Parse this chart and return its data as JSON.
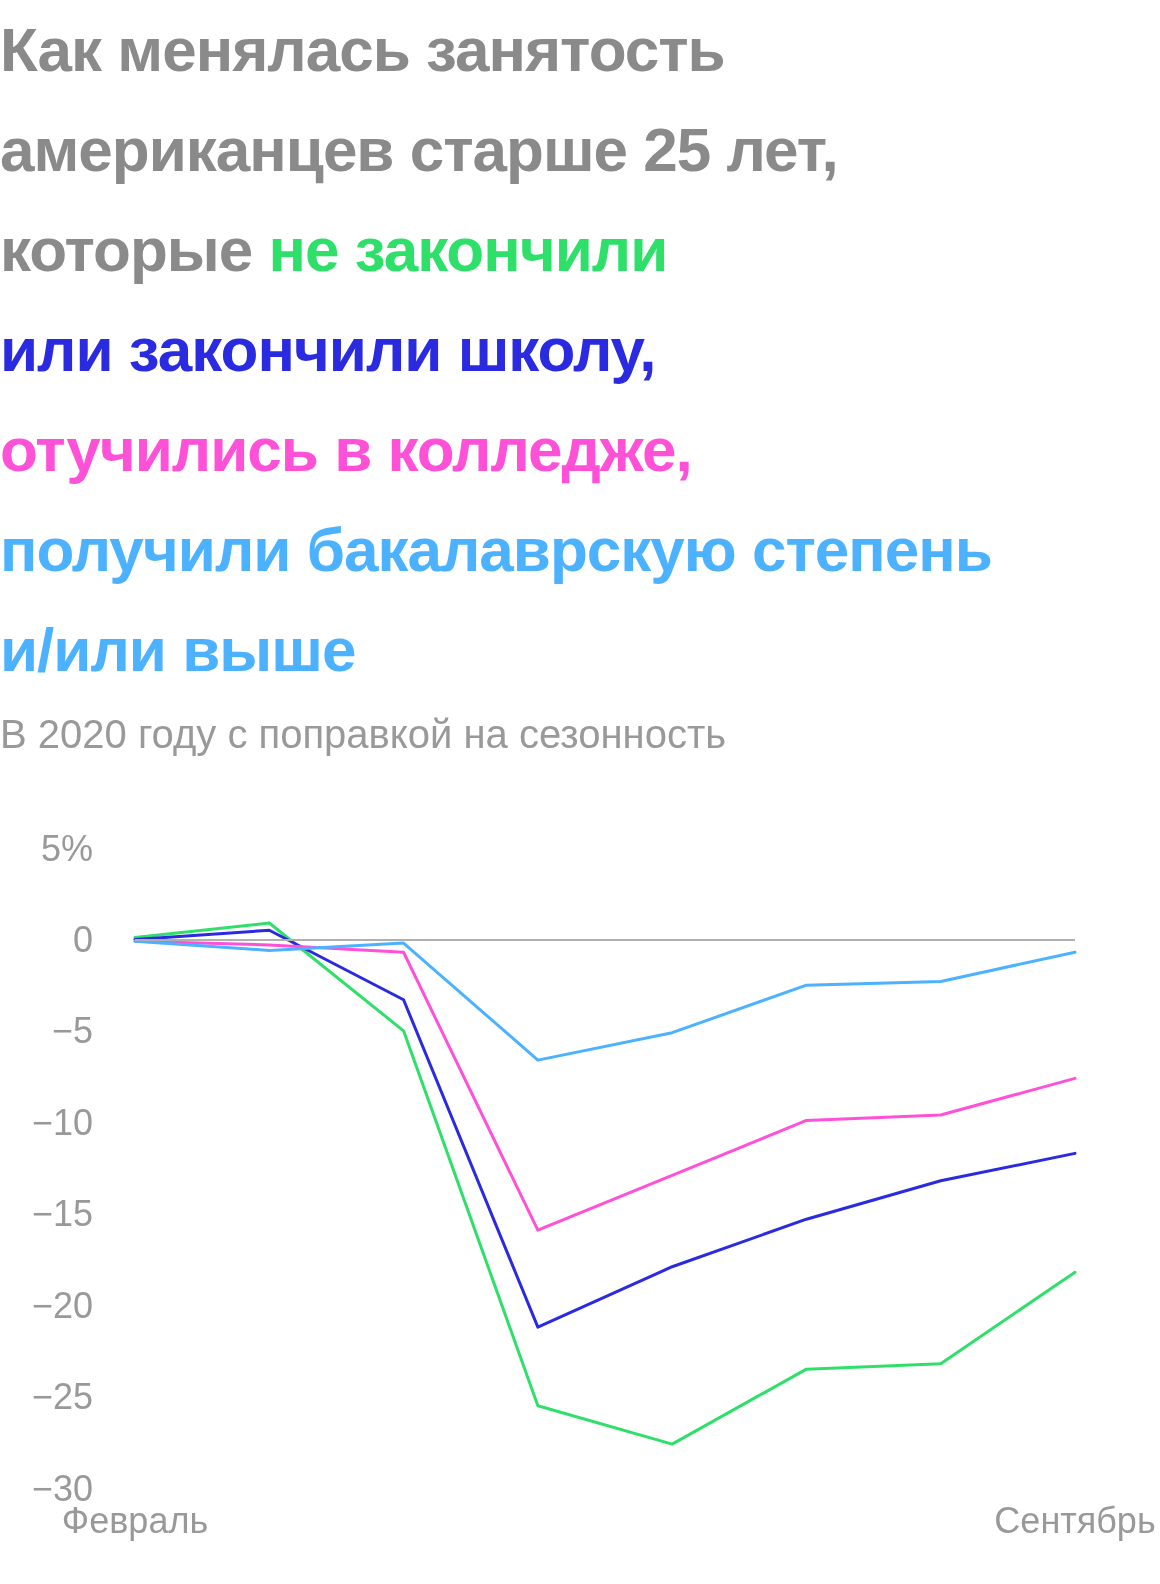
{
  "chart_data": {
    "type": "line",
    "title": "Как менялась занятость американцев старше 25 лет, которые",
    "subtitle": "В 2020 году с поправкой на сезонность",
    "categories": [
      "Февраль",
      null,
      null,
      null,
      null,
      null,
      null,
      "Сентябрь"
    ],
    "series": [
      {
        "name": "не закончили",
        "color": "#2ee06a",
        "values": [
          0.1,
          0.9,
          -5.0,
          -25.5,
          -27.6,
          -23.5,
          -23.2,
          -18.2
        ]
      },
      {
        "name": "или закончили школу,",
        "color": "#2a2ae0",
        "values": [
          0,
          0.5,
          -3.3,
          -21.2,
          -17.9,
          -15.3,
          -13.2,
          -11.7
        ]
      },
      {
        "name": "отучились в колледже,",
        "color": "#ff50d8",
        "values": [
          -0.1,
          -0.3,
          -0.7,
          -15.9,
          -12.9,
          -9.9,
          -9.6,
          -7.6
        ]
      },
      {
        "name": "получили бакалаврскую степень и/или выше",
        "color": "#4cb2ff",
        "values": [
          -0.1,
          -0.6,
          -0.2,
          -6.6,
          -5.1,
          -2.5,
          -2.3,
          -0.7
        ]
      }
    ],
    "ylim": [
      -30,
      5
    ],
    "yticks": [
      {
        "value": 5,
        "label": "5%"
      },
      0,
      {
        "value": -5,
        "label": "−5"
      },
      {
        "value": -10,
        "label": "−10"
      },
      {
        "value": -15,
        "label": "−15"
      },
      {
        "value": -20,
        "label": "−20"
      },
      {
        "value": -25,
        "label": "−25"
      },
      {
        "value": -30,
        "label": "−30"
      }
    ],
    "ref_lines": [
      {
        "axis": "y",
        "value": 0,
        "color": "#b0b0b0"
      }
    ],
    "grid": false,
    "legend": "top",
    "marker": "none",
    "line_style": "solid"
  }
}
